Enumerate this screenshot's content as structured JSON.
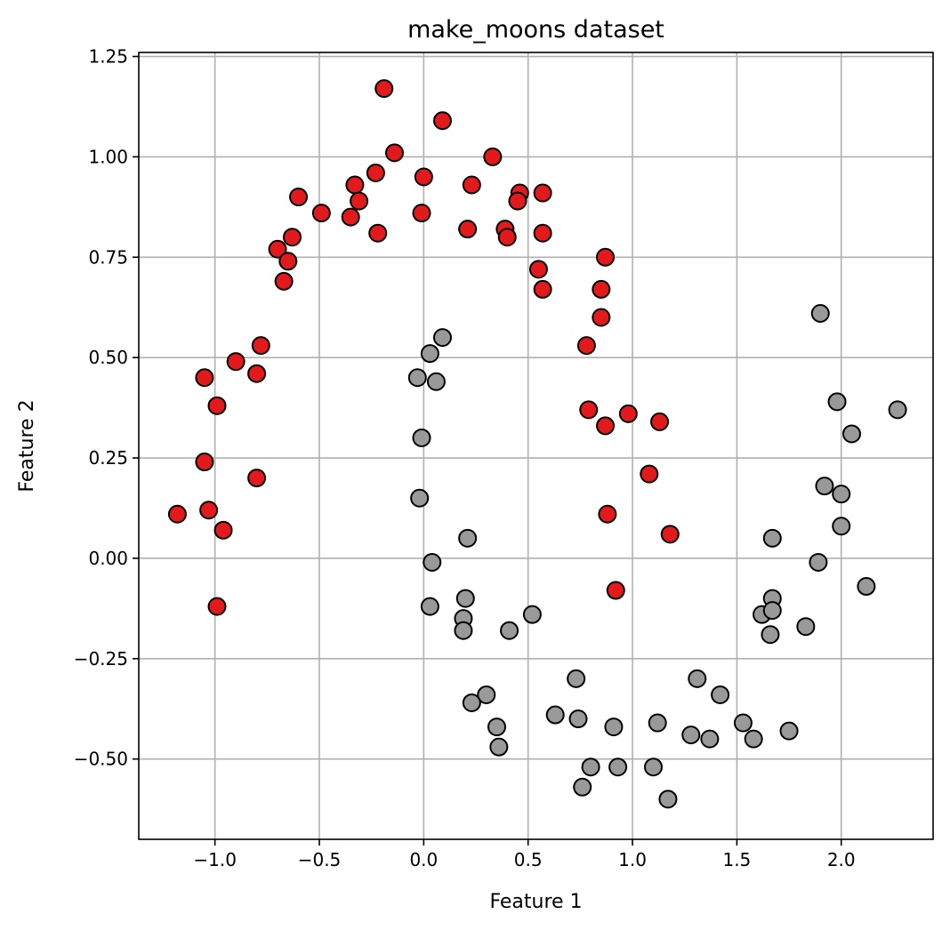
{
  "chart_data": {
    "type": "scatter",
    "title": "make_moons dataset",
    "xlabel": "Feature 1",
    "ylabel": "Feature 2",
    "xlim": [
      -1.365,
      2.44
    ],
    "ylim": [
      -0.7,
      1.26
    ],
    "xticks": [
      -1.0,
      -0.5,
      0.0,
      0.5,
      1.0,
      1.5,
      2.0
    ],
    "xtick_labels": [
      "−1.0",
      "−0.5",
      "0.0",
      "0.5",
      "1.0",
      "1.5",
      "2.0"
    ],
    "yticks": [
      -0.5,
      -0.25,
      0.0,
      0.25,
      0.5,
      0.75,
      1.0,
      1.25
    ],
    "ytick_labels": [
      "−0.50",
      "−0.25",
      "0.00",
      "0.25",
      "0.50",
      "0.75",
      "1.00",
      "1.25"
    ],
    "grid": true,
    "series": [
      {
        "color": "#e31a1c",
        "points": [
          [
            -0.19,
            1.17
          ],
          [
            0.09,
            1.09
          ],
          [
            -0.14,
            1.01
          ],
          [
            0.33,
            1.0
          ],
          [
            -0.23,
            0.96
          ],
          [
            0.0,
            0.95
          ],
          [
            0.23,
            0.93
          ],
          [
            -0.33,
            0.93
          ],
          [
            0.46,
            0.91
          ],
          [
            0.57,
            0.91
          ],
          [
            -0.6,
            0.9
          ],
          [
            -0.31,
            0.89
          ],
          [
            0.45,
            0.89
          ],
          [
            -0.49,
            0.86
          ],
          [
            -0.01,
            0.86
          ],
          [
            -0.35,
            0.85
          ],
          [
            0.21,
            0.82
          ],
          [
            0.39,
            0.82
          ],
          [
            -0.22,
            0.81
          ],
          [
            0.57,
            0.81
          ],
          [
            0.4,
            0.8
          ],
          [
            -0.63,
            0.8
          ],
          [
            -0.7,
            0.77
          ],
          [
            -0.65,
            0.74
          ],
          [
            0.87,
            0.75
          ],
          [
            0.55,
            0.72
          ],
          [
            -0.67,
            0.69
          ],
          [
            0.57,
            0.67
          ],
          [
            0.85,
            0.67
          ],
          [
            0.85,
            0.6
          ],
          [
            0.78,
            0.53
          ],
          [
            -0.78,
            0.53
          ],
          [
            -0.9,
            0.49
          ],
          [
            -0.8,
            0.46
          ],
          [
            -1.05,
            0.45
          ],
          [
            -0.99,
            0.38
          ],
          [
            0.79,
            0.37
          ],
          [
            0.98,
            0.36
          ],
          [
            0.87,
            0.33
          ],
          [
            1.13,
            0.34
          ],
          [
            -1.05,
            0.24
          ],
          [
            1.08,
            0.21
          ],
          [
            -0.8,
            0.2
          ],
          [
            0.88,
            0.11
          ],
          [
            -1.18,
            0.11
          ],
          [
            -1.03,
            0.12
          ],
          [
            -0.96,
            0.07
          ],
          [
            1.18,
            0.06
          ],
          [
            0.92,
            -0.08
          ],
          [
            -0.99,
            -0.12
          ]
        ]
      },
      {
        "color": "#999999",
        "points": [
          [
            1.9,
            0.61
          ],
          [
            0.09,
            0.55
          ],
          [
            0.03,
            0.51
          ],
          [
            -0.03,
            0.45
          ],
          [
            0.06,
            0.44
          ],
          [
            1.98,
            0.39
          ],
          [
            2.27,
            0.37
          ],
          [
            2.05,
            0.31
          ],
          [
            -0.01,
            0.3
          ],
          [
            1.92,
            0.18
          ],
          [
            2.0,
            0.16
          ],
          [
            -0.02,
            0.15
          ],
          [
            2.0,
            0.08
          ],
          [
            1.67,
            0.05
          ],
          [
            0.21,
            0.05
          ],
          [
            0.04,
            -0.01
          ],
          [
            1.89,
            -0.01
          ],
          [
            2.12,
            -0.07
          ],
          [
            0.2,
            -0.1
          ],
          [
            1.67,
            -0.1
          ],
          [
            0.03,
            -0.12
          ],
          [
            1.62,
            -0.14
          ],
          [
            1.67,
            -0.13
          ],
          [
            0.19,
            -0.15
          ],
          [
            0.52,
            -0.14
          ],
          [
            1.83,
            -0.17
          ],
          [
            0.19,
            -0.18
          ],
          [
            0.41,
            -0.18
          ],
          [
            1.66,
            -0.19
          ],
          [
            0.73,
            -0.3
          ],
          [
            1.31,
            -0.3
          ],
          [
            0.3,
            -0.34
          ],
          [
            1.42,
            -0.34
          ],
          [
            0.23,
            -0.36
          ],
          [
            0.63,
            -0.39
          ],
          [
            0.74,
            -0.4
          ],
          [
            1.53,
            -0.41
          ],
          [
            1.12,
            -0.41
          ],
          [
            0.35,
            -0.42
          ],
          [
            0.91,
            -0.42
          ],
          [
            1.75,
            -0.43
          ],
          [
            1.28,
            -0.44
          ],
          [
            1.37,
            -0.45
          ],
          [
            1.58,
            -0.45
          ],
          [
            0.36,
            -0.47
          ],
          [
            0.93,
            -0.52
          ],
          [
            1.1,
            -0.52
          ],
          [
            0.8,
            -0.52
          ],
          [
            0.76,
            -0.57
          ],
          [
            1.17,
            -0.6
          ]
        ]
      }
    ]
  }
}
